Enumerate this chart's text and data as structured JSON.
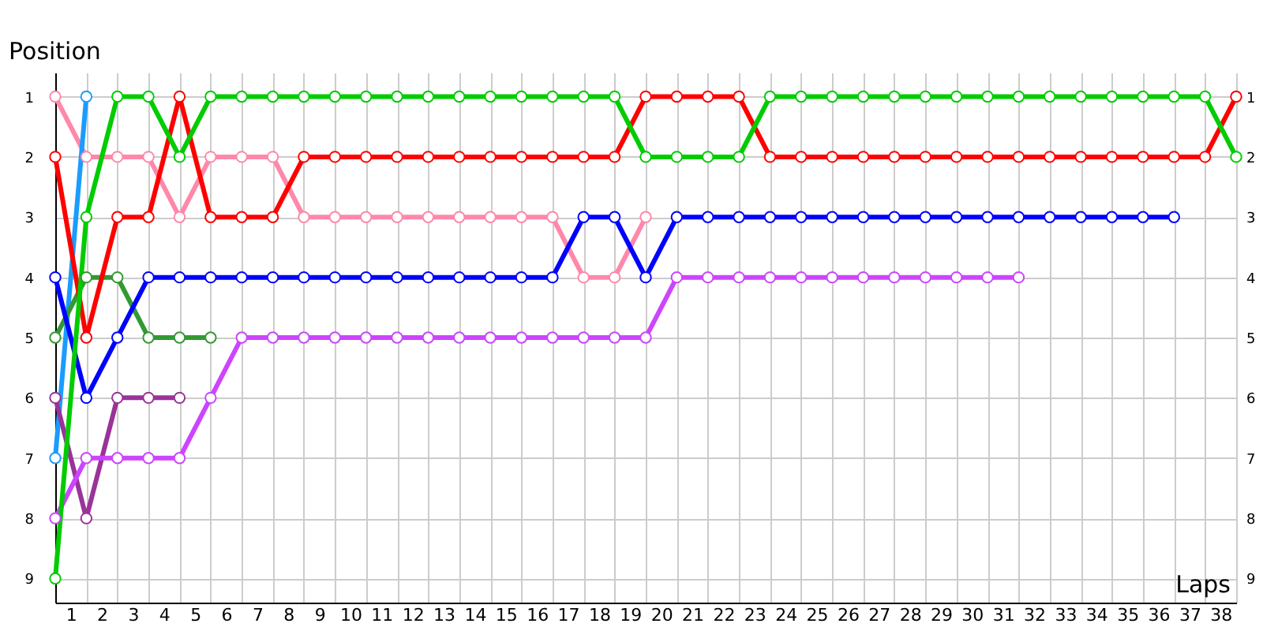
{
  "chart_data": {
    "type": "line",
    "xlabel": "Laps",
    "ylabel": "Position",
    "xlim": [
      0,
      38
    ],
    "xticks": [
      {
        "value": 0,
        "label": null
      },
      {
        "value": 0.5,
        "label": "1"
      },
      {
        "value": 1,
        "label": null
      },
      {
        "value": 1.5,
        "label": "2"
      },
      {
        "value": 2,
        "label": null
      },
      {
        "value": 2.5,
        "label": "3"
      },
      {
        "value": 3,
        "label": null
      },
      {
        "value": 3.5,
        "label": "4"
      },
      {
        "value": 4,
        "label": null
      },
      {
        "value": 4.5,
        "label": "5"
      },
      {
        "value": 5,
        "label": null
      },
      {
        "value": 5.5,
        "label": "6"
      },
      {
        "value": 6,
        "label": null
      },
      {
        "value": 6.5,
        "label": "7"
      },
      {
        "value": 7,
        "label": null
      },
      {
        "value": 7.5,
        "label": "8"
      },
      {
        "value": 8,
        "label": null
      },
      {
        "value": 8.5,
        "label": "9"
      },
      {
        "value": 9,
        "label": null
      },
      {
        "value": 9.5,
        "label": "10"
      },
      {
        "value": 10,
        "label": null
      },
      {
        "value": 10.5,
        "label": "11"
      },
      {
        "value": 11,
        "label": null
      },
      {
        "value": 11.5,
        "label": "12"
      },
      {
        "value": 12,
        "label": null
      },
      {
        "value": 12.5,
        "label": "13"
      },
      {
        "value": 13,
        "label": null
      },
      {
        "value": 13.5,
        "label": "14"
      },
      {
        "value": 14,
        "label": null
      },
      {
        "value": 14.5,
        "label": "15"
      },
      {
        "value": 15,
        "label": null
      },
      {
        "value": 15.5,
        "label": "16"
      },
      {
        "value": 16,
        "label": null
      },
      {
        "value": 16.5,
        "label": "17"
      },
      {
        "value": 17,
        "label": null
      },
      {
        "value": 17.5,
        "label": "18"
      },
      {
        "value": 18,
        "label": null
      },
      {
        "value": 18.5,
        "label": "19"
      },
      {
        "value": 19,
        "label": null
      },
      {
        "value": 19.5,
        "label": "20"
      },
      {
        "value": 20,
        "label": null
      },
      {
        "value": 20.5,
        "label": "21"
      },
      {
        "value": 21,
        "label": null
      },
      {
        "value": 21.5,
        "label": "22"
      },
      {
        "value": 22,
        "label": null
      },
      {
        "value": 22.5,
        "label": "23"
      },
      {
        "value": 23,
        "label": null
      },
      {
        "value": 23.5,
        "label": "24"
      },
      {
        "value": 24,
        "label": null
      },
      {
        "value": 24.5,
        "label": "25"
      },
      {
        "value": 25,
        "label": null
      },
      {
        "value": 25.5,
        "label": "26"
      },
      {
        "value": 26,
        "label": null
      },
      {
        "value": 26.5,
        "label": "27"
      },
      {
        "value": 27,
        "label": null
      },
      {
        "value": 27.5,
        "label": "28"
      },
      {
        "value": 28,
        "label": null
      },
      {
        "value": 28.5,
        "label": "29"
      },
      {
        "value": 29,
        "label": null
      },
      {
        "value": 29.5,
        "label": "30"
      },
      {
        "value": 30,
        "label": null
      },
      {
        "value": 30.5,
        "label": "31"
      },
      {
        "value": 31,
        "label": null
      },
      {
        "value": 31.5,
        "label": "32"
      },
      {
        "value": 32,
        "label": null
      },
      {
        "value": 32.5,
        "label": "33"
      },
      {
        "value": 33,
        "label": null
      },
      {
        "value": 33.5,
        "label": "34"
      },
      {
        "value": 34,
        "label": null
      },
      {
        "value": 34.5,
        "label": "35"
      },
      {
        "value": 35,
        "label": null
      },
      {
        "value": 35.5,
        "label": "36"
      },
      {
        "value": 36,
        "label": null
      },
      {
        "value": 36.5,
        "label": "37"
      },
      {
        "value": 37,
        "label": null
      },
      {
        "value": 37.5,
        "label": "38"
      },
      {
        "value": 38,
        "label": null
      }
    ],
    "ylim": [
      9.4,
      0.6
    ],
    "yticks": [
      1,
      2,
      3,
      4,
      5,
      6,
      7,
      8,
      9
    ],
    "y2lim": [
      9.4,
      0.6
    ],
    "y2ticks": [
      1,
      2,
      3,
      4,
      5,
      6,
      7,
      8,
      9
    ],
    "grid": true,
    "legend": false,
    "marker": "circle",
    "line_style": "solid",
    "series": [
      {
        "color": "#ff88aa",
        "x": [
          0,
          1,
          2,
          3,
          4,
          5,
          6,
          7,
          8,
          9,
          10,
          11,
          12,
          13,
          14,
          15,
          16,
          17,
          18,
          19
        ],
        "values": [
          1,
          2,
          2,
          2,
          3,
          2,
          2,
          2,
          3,
          3,
          3,
          3,
          3,
          3,
          3,
          3,
          3,
          4,
          4,
          3
        ]
      },
      {
        "color": "#1a9cff",
        "x": [
          0,
          1
        ],
        "values": [
          7,
          1
        ]
      },
      {
        "color": "#339933",
        "x": [
          0,
          1,
          2,
          3,
          4,
          5
        ],
        "values": [
          5,
          4,
          4,
          5,
          5,
          5
        ]
      },
      {
        "color": "#993399",
        "x": [
          0,
          1,
          2,
          3,
          4
        ],
        "values": [
          6,
          8,
          6,
          6,
          6
        ]
      },
      {
        "color": "#cc44ff",
        "x": [
          0,
          1,
          2,
          3,
          4,
          5,
          6,
          7,
          8,
          9,
          10,
          11,
          12,
          13,
          14,
          15,
          16,
          17,
          18,
          19,
          20,
          21,
          22,
          23,
          24,
          25,
          26,
          27,
          28,
          29,
          30,
          31
        ],
        "values": [
          8,
          7,
          7,
          7,
          7,
          6,
          5,
          5,
          5,
          5,
          5,
          5,
          5,
          5,
          5,
          5,
          5,
          5,
          5,
          5,
          4,
          4,
          4,
          4,
          4,
          4,
          4,
          4,
          4,
          4,
          4,
          4
        ]
      },
      {
        "color": "#0000ff",
        "x": [
          0,
          1,
          2,
          3,
          4,
          5,
          6,
          7,
          8,
          9,
          10,
          11,
          12,
          13,
          14,
          15,
          16,
          17,
          18,
          19,
          20,
          21,
          22,
          23,
          24,
          25,
          26,
          27,
          28,
          29,
          30,
          31,
          32,
          33,
          34,
          35,
          36
        ],
        "values": [
          4,
          6,
          5,
          4,
          4,
          4,
          4,
          4,
          4,
          4,
          4,
          4,
          4,
          4,
          4,
          4,
          4,
          3,
          3,
          4,
          3,
          3,
          3,
          3,
          3,
          3,
          3,
          3,
          3,
          3,
          3,
          3,
          3,
          3,
          3,
          3,
          3
        ]
      },
      {
        "color": "#ff0000",
        "x": [
          0,
          1,
          2,
          3,
          4,
          5,
          6,
          7,
          8,
          9,
          10,
          11,
          12,
          13,
          14,
          15,
          16,
          17,
          18,
          19,
          20,
          21,
          22,
          23,
          24,
          25,
          26,
          27,
          28,
          29,
          30,
          31,
          32,
          33,
          34,
          35,
          36,
          37,
          38
        ],
        "values": [
          2,
          5,
          3,
          3,
          1,
          3,
          3,
          3,
          2,
          2,
          2,
          2,
          2,
          2,
          2,
          2,
          2,
          2,
          2,
          1,
          1,
          1,
          1,
          2,
          2,
          2,
          2,
          2,
          2,
          2,
          2,
          2,
          2,
          2,
          2,
          2,
          2,
          2,
          1
        ]
      },
      {
        "color": "#00cc00",
        "x": [
          0,
          1,
          2,
          3,
          4,
          5,
          6,
          7,
          8,
          9,
          10,
          11,
          12,
          13,
          14,
          15,
          16,
          17,
          18,
          19,
          20,
          21,
          22,
          23,
          24,
          25,
          26,
          27,
          28,
          29,
          30,
          31,
          32,
          33,
          34,
          35,
          36,
          37,
          38
        ],
        "values": [
          9,
          3,
          1,
          1,
          2,
          1,
          1,
          1,
          1,
          1,
          1,
          1,
          1,
          1,
          1,
          1,
          1,
          1,
          1,
          2,
          2,
          2,
          2,
          1,
          1,
          1,
          1,
          1,
          1,
          1,
          1,
          1,
          1,
          1,
          1,
          1,
          1,
          1,
          2
        ]
      }
    ]
  }
}
